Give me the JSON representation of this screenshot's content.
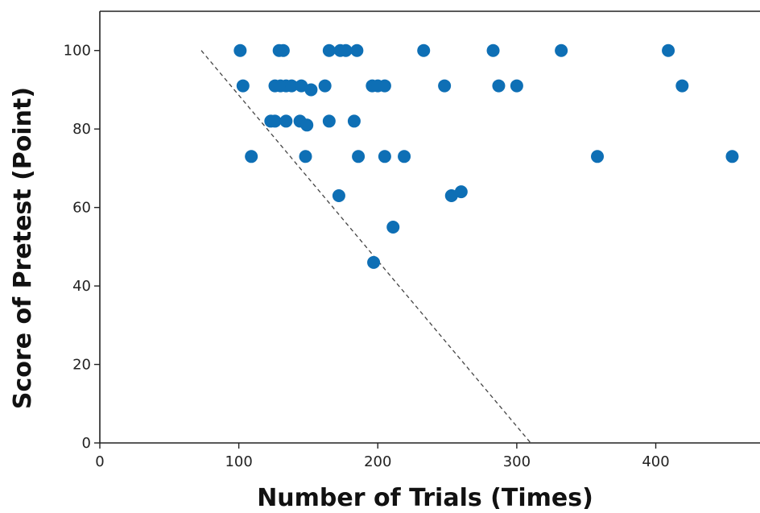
{
  "chart_data": {
    "type": "scatter",
    "title": "",
    "xlabel": "Number of Trials (Times)",
    "ylabel": "Score of Pretest (Point)",
    "xlim": [
      0,
      475
    ],
    "ylim": [
      0,
      110
    ],
    "xticks": [
      "0",
      "100",
      "200",
      "300",
      "400"
    ],
    "yticks": [
      "0",
      "20",
      "40",
      "60",
      "80",
      "100"
    ],
    "grid": false,
    "point_color": "#0e6fb5",
    "reference_line": {
      "style": "dashed",
      "color": "#444444",
      "points": [
        [
          73,
          100
        ],
        [
          310,
          0
        ]
      ]
    },
    "points": [
      [
        101,
        100
      ],
      [
        129,
        100
      ],
      [
        132,
        100
      ],
      [
        165,
        100
      ],
      [
        173,
        100
      ],
      [
        177,
        100
      ],
      [
        185,
        100
      ],
      [
        233,
        100
      ],
      [
        283,
        100
      ],
      [
        332,
        100
      ],
      [
        409,
        100
      ],
      [
        103,
        91
      ],
      [
        126,
        91
      ],
      [
        130,
        91
      ],
      [
        134,
        91
      ],
      [
        138,
        91
      ],
      [
        145,
        91
      ],
      [
        152,
        90
      ],
      [
        162,
        91
      ],
      [
        196,
        91
      ],
      [
        200,
        91
      ],
      [
        205,
        91
      ],
      [
        248,
        91
      ],
      [
        287,
        91
      ],
      [
        300,
        91
      ],
      [
        419,
        91
      ],
      [
        123,
        82
      ],
      [
        126,
        82
      ],
      [
        134,
        82
      ],
      [
        144,
        82
      ],
      [
        149,
        81
      ],
      [
        165,
        82
      ],
      [
        183,
        82
      ],
      [
        109,
        73
      ],
      [
        148,
        73
      ],
      [
        186,
        73
      ],
      [
        205,
        73
      ],
      [
        219,
        73
      ],
      [
        358,
        73
      ],
      [
        455,
        73
      ],
      [
        172,
        63
      ],
      [
        253,
        63
      ],
      [
        260,
        64
      ],
      [
        211,
        55
      ],
      [
        197,
        46
      ]
    ]
  }
}
